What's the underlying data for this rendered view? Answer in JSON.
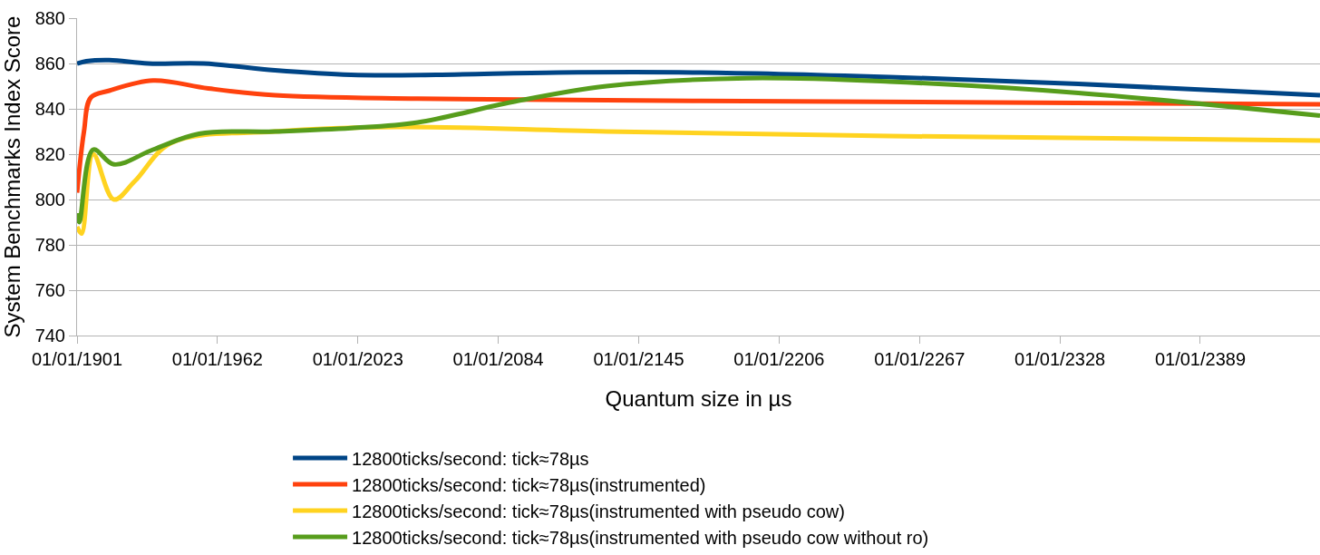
{
  "chart_data": {
    "type": "line",
    "xlabel": "Quantum size in µs",
    "ylabel": "System Benchmarks Index Score",
    "xlim": [
      "1901",
      "2441"
    ],
    "xticks": [
      {
        "value": "1901",
        "label": "01/01/1901"
      },
      {
        "value": "1962",
        "label": "01/01/1962"
      },
      {
        "value": "2023",
        "label": "01/01/2023"
      },
      {
        "value": "2084",
        "label": "01/01/2084"
      },
      {
        "value": "2145",
        "label": "01/01/2145"
      },
      {
        "value": "2206",
        "label": "01/01/2206"
      },
      {
        "value": "2267",
        "label": "01/01/2267"
      },
      {
        "value": "2328",
        "label": "01/01/2328"
      },
      {
        "value": "2389",
        "label": "01/01/2389"
      }
    ],
    "ylim": [
      740,
      880
    ],
    "yticks": [
      740,
      760,
      780,
      800,
      820,
      840,
      860,
      880
    ],
    "grid": "y",
    "legend": "bottom",
    "marker": "none",
    "line_style": "solid",
    "series": [
      {
        "name": "12800ticks/second: tick≈78µs",
        "color": "#004586",
        "x": [
          "1901",
          "1905",
          "1915",
          "1932",
          "1956",
          "1987",
          "2020",
          "2057",
          "2110",
          "2172",
          "2254",
          "2336",
          "2441"
        ],
        "values": [
          860,
          861,
          861.5,
          860,
          860,
          857,
          855,
          855,
          856,
          856,
          854,
          851,
          846
        ]
      },
      {
        "name": "12800ticks/second: tick≈78µs(instrumented)",
        "color": "#ff420e",
        "x": [
          "1901",
          "1904",
          "1907",
          "1915",
          "1934",
          "1958",
          "1987",
          "2049",
          "2172",
          "2441"
        ],
        "values": [
          803,
          830,
          845,
          848,
          852.5,
          849,
          846,
          844.5,
          843.5,
          842
        ]
      },
      {
        "name": "12800ticks/second: tick≈78µs(instrumented with pseudo cow)",
        "color": "#ffd320",
        "x": [
          "1901",
          "1903",
          "1908",
          "1917",
          "1926",
          "1942",
          "1987",
          "2040",
          "2131",
          "2254",
          "2441"
        ],
        "values": [
          788,
          785,
          820,
          800,
          808,
          825,
          830,
          832,
          830,
          828,
          826
        ]
      },
      {
        "name": "12800ticks/second: tick≈78µs(instrumented with pseudo cow without ro)",
        "color": "#579d1c",
        "x": [
          "1901",
          "1902",
          "1908",
          "1917",
          "1934",
          "1954",
          "1987",
          "2020",
          "2049",
          "2090",
          "2131",
          "2192",
          "2254",
          "2336",
          "2441"
        ],
        "values": [
          794,
          790,
          822,
          815.5,
          822,
          829,
          830,
          831.5,
          834,
          843,
          850,
          853.5,
          852,
          847,
          837
        ]
      }
    ]
  }
}
